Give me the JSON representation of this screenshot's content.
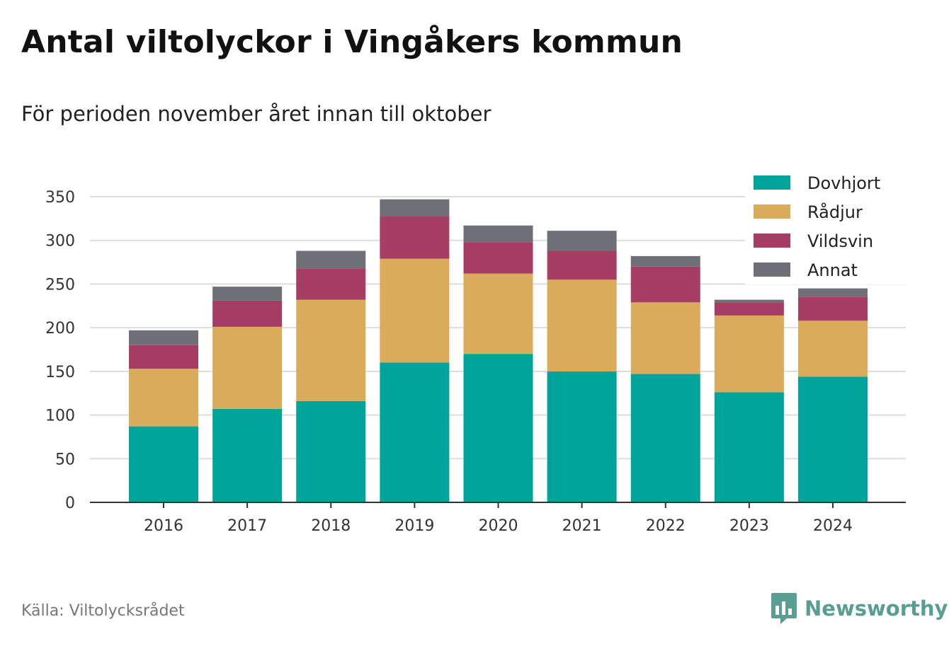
{
  "title": "Antal viltolyckor i Vingåkers kommun",
  "subtitle": "För perioden november året innan till oktober",
  "source": "Källa: Viltolycksrådet",
  "brand": {
    "name": "Newsworthy",
    "color": "#5a9d92",
    "icon": "bar-chart-speech-bubble-icon"
  },
  "chart_data": {
    "type": "bar",
    "stacked": true,
    "categories": [
      "2016",
      "2017",
      "2018",
      "2019",
      "2020",
      "2021",
      "2022",
      "2023",
      "2024"
    ],
    "series": [
      {
        "name": "Dovhjort",
        "color": "#00a49a",
        "values": [
          87,
          107,
          116,
          160,
          170,
          150,
          147,
          126,
          144
        ]
      },
      {
        "name": "Rådjur",
        "color": "#d9ab5a",
        "values": [
          66,
          94,
          116,
          119,
          92,
          105,
          82,
          88,
          64
        ]
      },
      {
        "name": "Vildsvin",
        "color": "#a63d63",
        "values": [
          27,
          30,
          36,
          49,
          36,
          33,
          41,
          15,
          27
        ]
      },
      {
        "name": "Annat",
        "color": "#6f6f77",
        "values": [
          17,
          16,
          20,
          19,
          19,
          23,
          12,
          3,
          10
        ]
      }
    ],
    "ylim": [
      0,
      350
    ],
    "yticks": [
      0,
      50,
      100,
      150,
      200,
      250,
      300,
      350
    ],
    "grid": true,
    "legend_position": "top-right",
    "xlabel": "",
    "ylabel": ""
  }
}
